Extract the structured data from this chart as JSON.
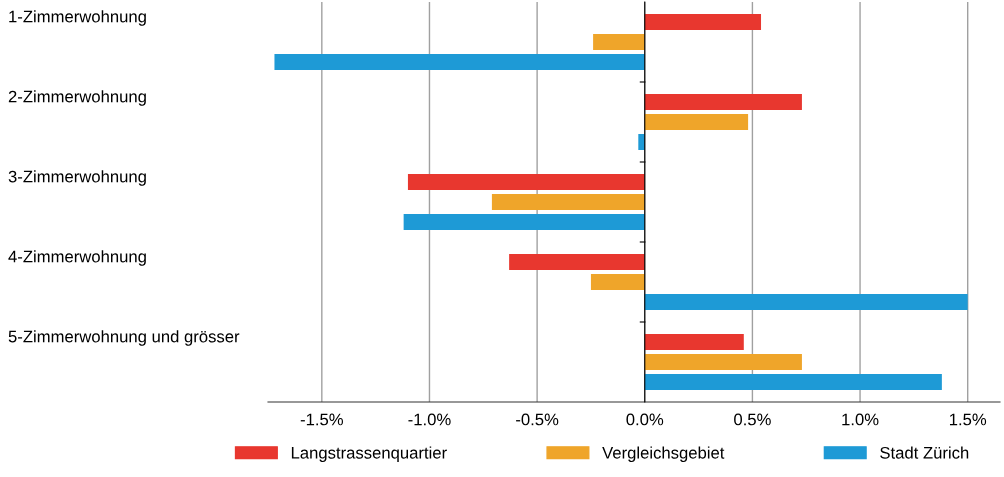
{
  "chart_data": {
    "type": "bar",
    "orientation": "horizontal",
    "categories": [
      "1-Zimmerwohnung",
      "2-Zimmerwohnung",
      "3-Zimmerwohnung",
      "4-Zimmerwohnung",
      "5-Zimmerwohnung und grösser"
    ],
    "series": [
      {
        "name": "Langstrassenquartier",
        "color": "#e8372f",
        "values": [
          0.54,
          0.73,
          -1.1,
          -0.63,
          0.46
        ]
      },
      {
        "name": "Vergleichsgebiet",
        "color": "#efa52a",
        "values": [
          -0.24,
          0.48,
          -0.71,
          -0.25,
          0.73
        ]
      },
      {
        "name": "Stadt Zürich",
        "color": "#1e9ad6",
        "values": [
          -1.72,
          -0.03,
          -1.12,
          1.5,
          1.38
        ]
      }
    ],
    "xlim": [
      -1.75,
      1.65
    ],
    "xticks": [
      {
        "value": -1.5,
        "label": "-1.5%"
      },
      {
        "value": -1.0,
        "label": "-1.0%"
      },
      {
        "value": -0.5,
        "label": "-0.5%"
      },
      {
        "value": 0,
        "label": "0.0%"
      },
      {
        "value": 0.5,
        "label": "0.5%"
      },
      {
        "value": 1.0,
        "label": "1.0%"
      },
      {
        "value": 1.5,
        "label": "1.5%"
      }
    ],
    "grid": "x",
    "legend": "bottom"
  }
}
